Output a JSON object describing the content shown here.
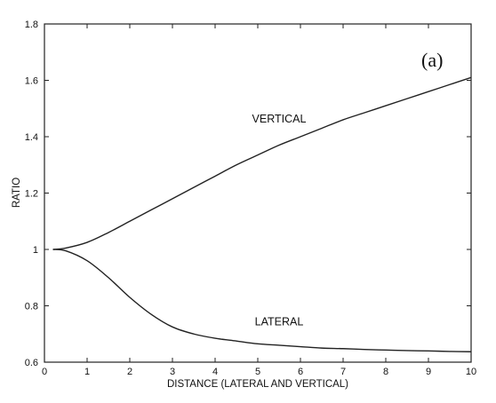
{
  "chart_data": {
    "type": "line",
    "panel_label": "(a)",
    "xlabel": "DISTANCE (LATERAL AND VERTICAL)",
    "ylabel": "RATIO",
    "xlim": [
      0,
      10
    ],
    "ylim": [
      0.6,
      1.8
    ],
    "xticks": [
      0,
      1,
      2,
      3,
      4,
      5,
      6,
      7,
      8,
      9,
      10
    ],
    "yticks": [
      0.6,
      0.8,
      1,
      1.2,
      1.4,
      1.6,
      1.8
    ],
    "ytick_labels": [
      "0.6",
      "0.8",
      "1",
      "1.2",
      "1.4",
      "1.6",
      "1.8"
    ],
    "grid": false,
    "series": [
      {
        "name": "VERTICAL",
        "x": [
          0.2,
          0.5,
          1.0,
          1.5,
          2.0,
          2.5,
          3.0,
          3.5,
          4.0,
          4.5,
          5.0,
          5.5,
          6.0,
          6.5,
          7.0,
          7.5,
          8.0,
          8.5,
          9.0,
          9.5,
          10.0
        ],
        "y": [
          1.0,
          1.005,
          1.025,
          1.06,
          1.1,
          1.14,
          1.18,
          1.22,
          1.26,
          1.3,
          1.335,
          1.37,
          1.4,
          1.43,
          1.46,
          1.485,
          1.51,
          1.535,
          1.56,
          1.585,
          1.61
        ]
      },
      {
        "name": "LATERAL",
        "x": [
          0.2,
          0.5,
          1.0,
          1.5,
          2.0,
          2.5,
          3.0,
          3.5,
          4.0,
          4.5,
          5.0,
          5.5,
          6.0,
          6.5,
          7.0,
          7.5,
          8.0,
          8.5,
          9.0,
          9.5,
          10.0
        ],
        "y": [
          1.0,
          0.995,
          0.96,
          0.9,
          0.83,
          0.77,
          0.725,
          0.7,
          0.685,
          0.675,
          0.665,
          0.66,
          0.655,
          0.65,
          0.648,
          0.645,
          0.643,
          0.641,
          0.64,
          0.638,
          0.637
        ]
      }
    ],
    "annotations": [
      {
        "text": "VERTICAL",
        "x": 5.5,
        "y": 1.45
      },
      {
        "text": "LATERAL",
        "x": 5.5,
        "y": 0.73
      }
    ]
  }
}
